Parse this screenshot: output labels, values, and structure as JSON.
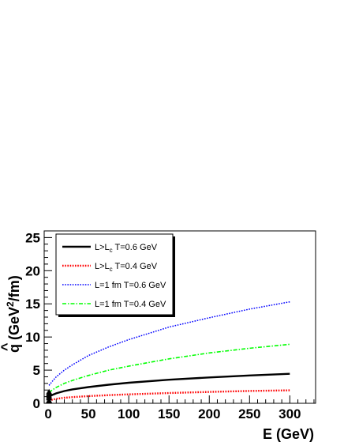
{
  "chart_data": {
    "type": "line",
    "xlabel": "E (GeV)",
    "ylabel": "q̂ (GeV²/fm)",
    "ylabel_parts": {
      "q": "q",
      "hat": "^",
      "open": " (GeV",
      "sup": "2",
      "close": "/fm)"
    },
    "xlim": [
      -5,
      332
    ],
    "ylim": [
      0,
      26
    ],
    "xticks": [
      0,
      50,
      100,
      150,
      200,
      250,
      300
    ],
    "yticks": [
      0,
      5,
      10,
      15,
      20,
      25
    ],
    "grid": false,
    "legend_position": "top-left",
    "x": [
      1,
      5,
      10,
      20,
      30,
      50,
      75,
      100,
      150,
      200,
      250,
      300
    ],
    "series": [
      {
        "name": "L>Lc T=0.6 GeV",
        "name_parts": {
          "a": "L>L",
          "sub": "c",
          "b": " T=0.6 GeV"
        },
        "color": "#000000",
        "dash": "solid",
        "values": [
          1.0,
          1.25,
          1.5,
          1.85,
          2.1,
          2.45,
          2.8,
          3.1,
          3.55,
          3.9,
          4.2,
          4.45
        ]
      },
      {
        "name": "L>Lc T=0.4 GeV",
        "name_parts": {
          "a": "L>L",
          "sub": "c",
          "b": " T=0.4 GeV"
        },
        "color": "#ff0000",
        "dash": "dotted",
        "values": [
          0.4,
          0.55,
          0.68,
          0.83,
          0.93,
          1.08,
          1.23,
          1.35,
          1.55,
          1.72,
          1.86,
          1.95
        ]
      },
      {
        "name": "L=1 fm T=0.6 GeV",
        "name_parts": {
          "a": "L=1 fm T=0.6 GeV",
          "sub": "",
          "b": ""
        },
        "color": "#0000ff",
        "dash": "dotted",
        "values": [
          2.7,
          3.3,
          4.0,
          5.0,
          5.8,
          7.2,
          8.5,
          9.6,
          11.5,
          12.9,
          14.2,
          15.3
        ]
      },
      {
        "name": "L=1 fm T=0.4 GeV",
        "name_parts": {
          "a": "L=1 fm T=0.4 GeV",
          "sub": "",
          "b": ""
        },
        "color": "#00ff00",
        "dash": "dashdot",
        "values": [
          1.6,
          2.0,
          2.4,
          3.0,
          3.45,
          4.2,
          5.0,
          5.6,
          6.7,
          7.6,
          8.3,
          8.9
        ]
      }
    ],
    "markers": {
      "shape": "triangle-up",
      "color": "#000000",
      "x": [
        1,
        1,
        1,
        1,
        1
      ],
      "y": [
        0.4,
        0.8,
        1.1,
        1.4,
        1.7
      ]
    }
  }
}
